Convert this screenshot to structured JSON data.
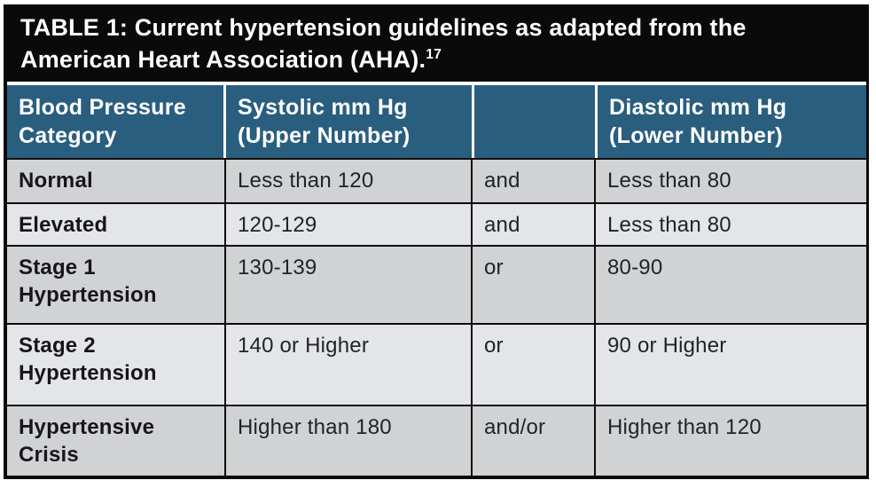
{
  "title": {
    "label": "TABLE 1:",
    "text": " Current hypertension guidelines as adapted from the American Heart Association (AHA).",
    "citation": "17"
  },
  "colors": {
    "title_bg": "#0a0a0a",
    "header_bg": "#295e7f",
    "header_text": "#ffffff",
    "row_dark": "#d0d2d4",
    "row_light": "#e3e5e8",
    "grid_line": "#0c0c0c",
    "body_text": "#222326"
  },
  "table": {
    "headers": [
      "Blood Pressure Category",
      "Systolic mm Hg (Upper Number)",
      "",
      "Diastolic mm Hg (Lower Number)"
    ],
    "rows": [
      {
        "category": "Normal",
        "systolic": "Less than 120",
        "conjunction": "and",
        "diastolic": "Less than 80"
      },
      {
        "category": "Elevated",
        "systolic": "120-129",
        "conjunction": "and",
        "diastolic": "Less than 80"
      },
      {
        "category": "Stage 1 Hypertension",
        "systolic": "130-139",
        "conjunction": "or",
        "diastolic": "80-90"
      },
      {
        "category": "Stage 2 Hypertension",
        "systolic": "140 or Higher",
        "conjunction": "or",
        "diastolic": "90 or Higher"
      },
      {
        "category": "Hypertensive Crisis",
        "systolic": "Higher than 180",
        "conjunction": "and/or",
        "diastolic": "Higher than 120"
      }
    ]
  }
}
